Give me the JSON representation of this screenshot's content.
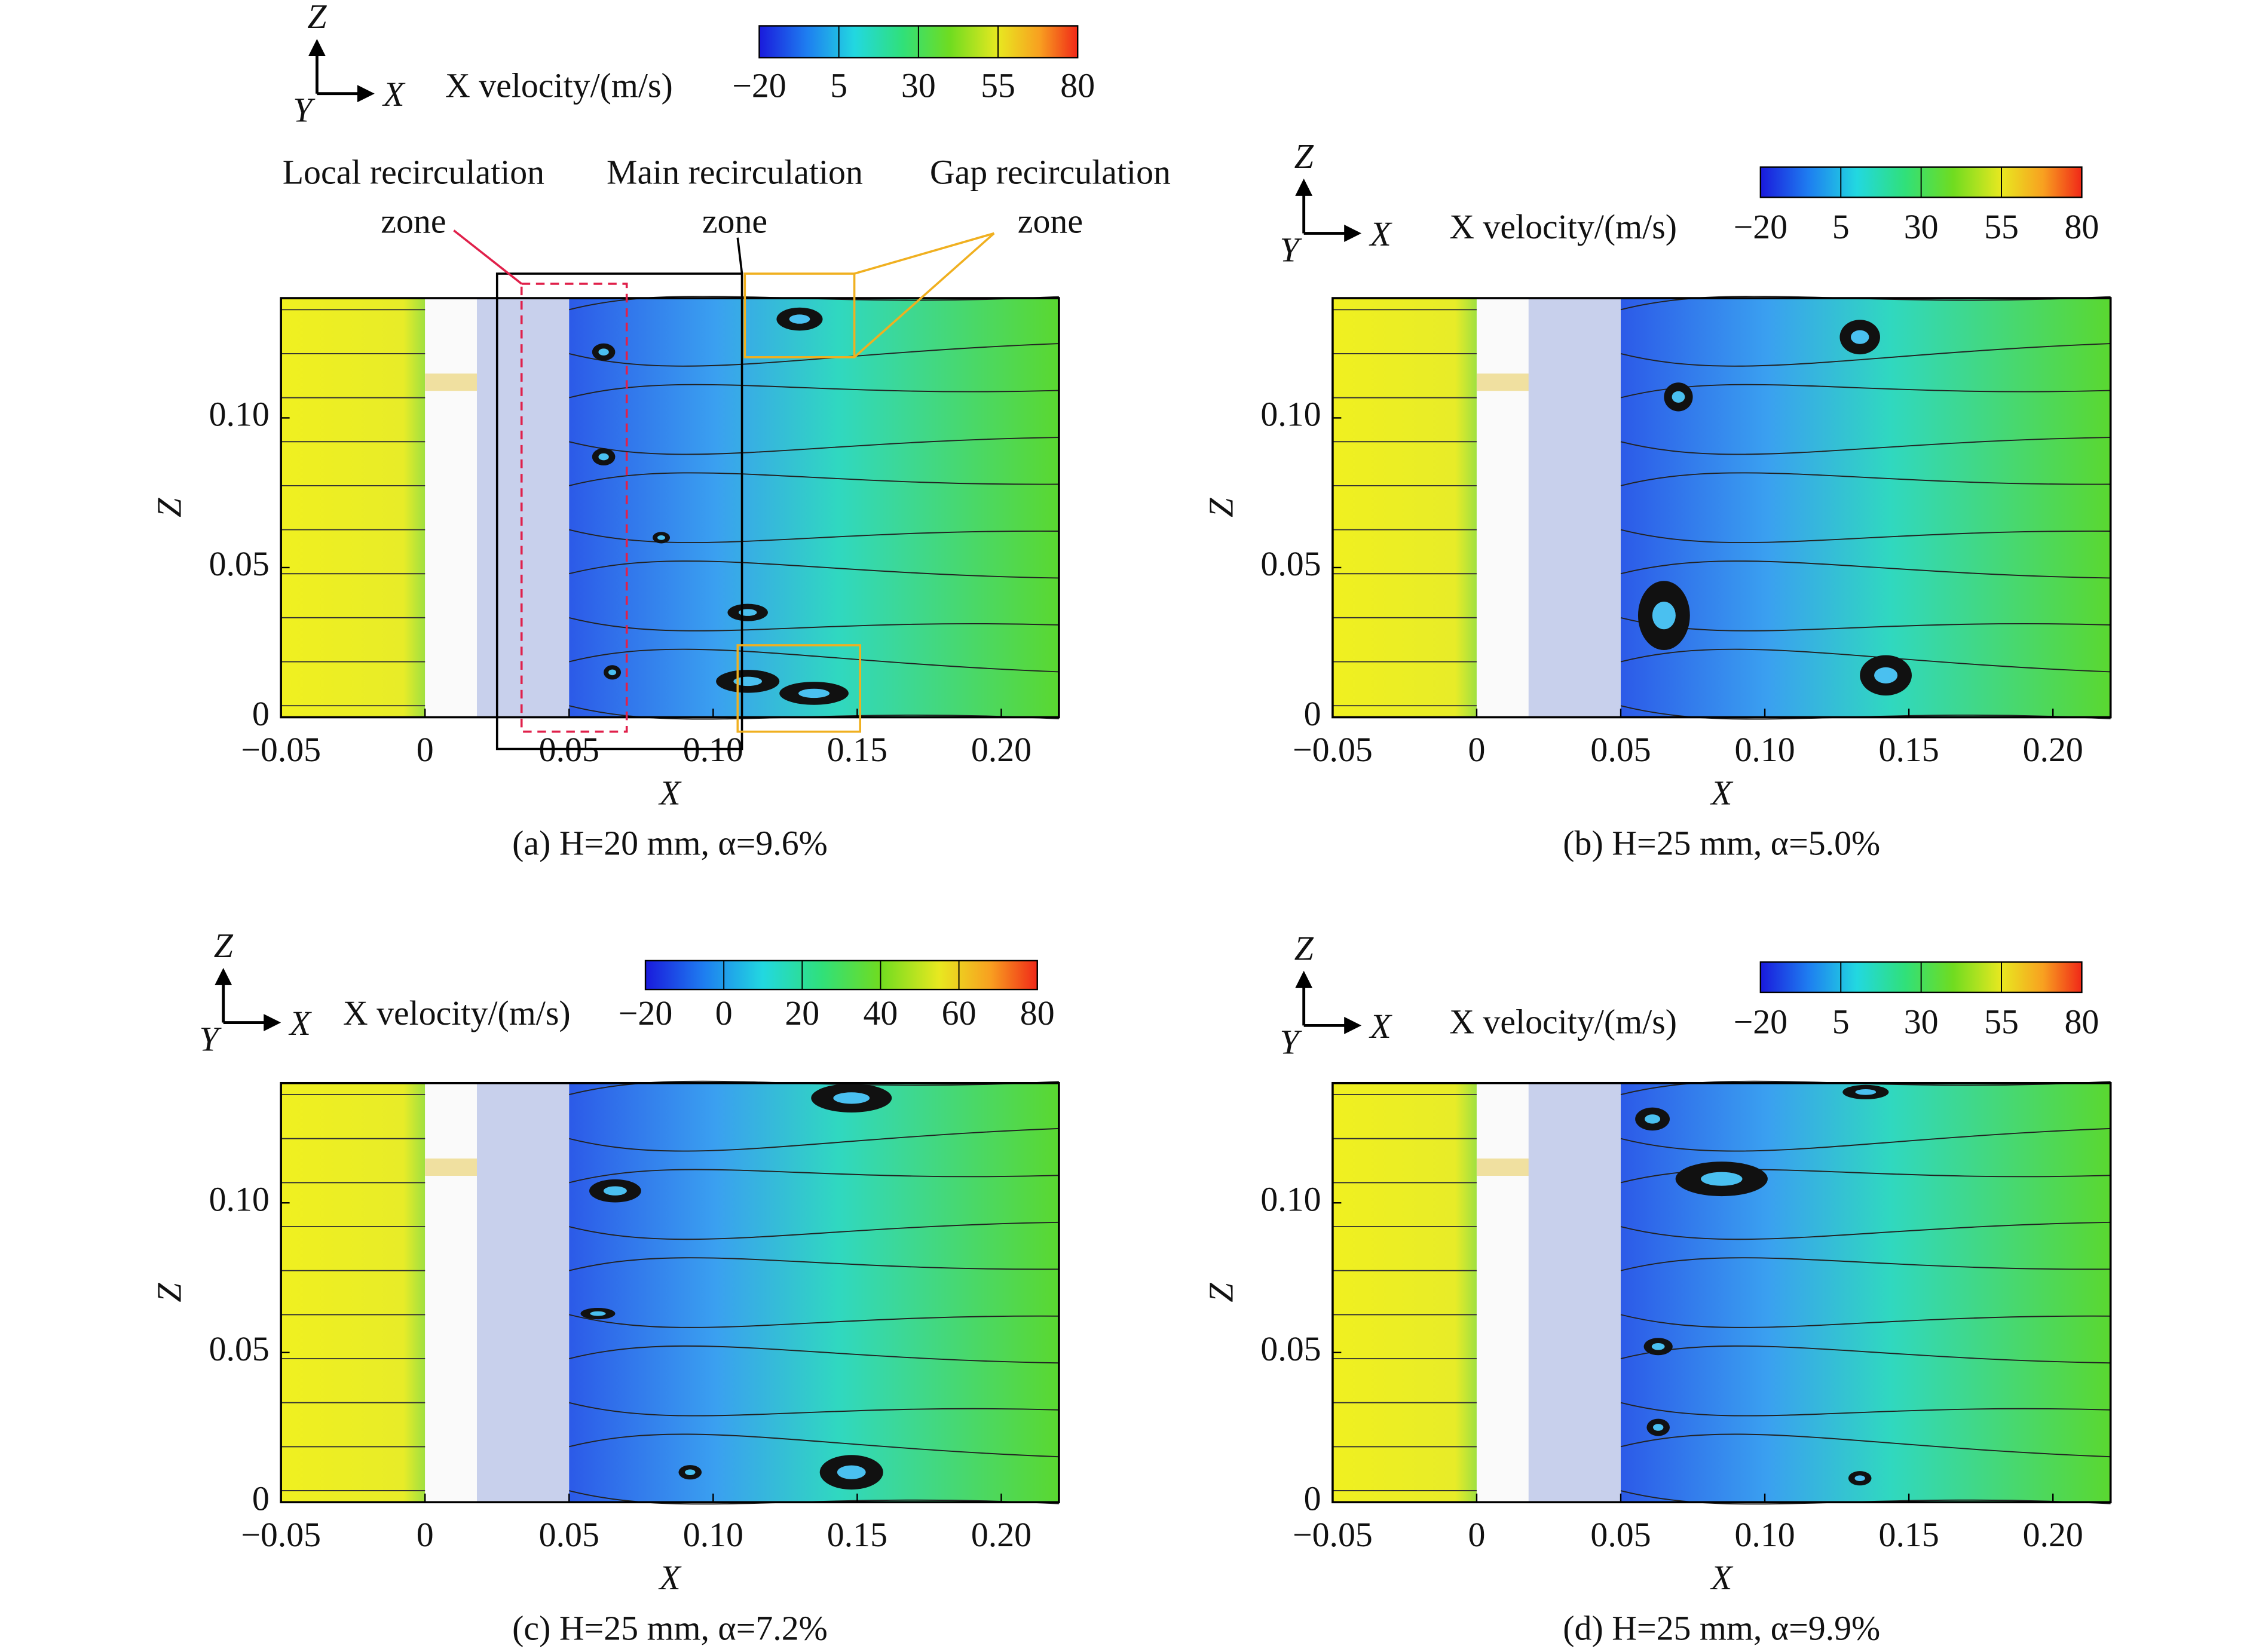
{
  "chart_data": [
    {
      "type": "contour",
      "caption": "(a) H=20 mm, α=9.6%",
      "xlabel": "X",
      "ylabel": "Z",
      "xlim": [
        -0.05,
        0.22
      ],
      "ylim": [
        0,
        0.14
      ],
      "xticks": [
        {
          "value": -0.05,
          "label": "−0.05"
        },
        0,
        0.05,
        {
          "value": 0.1,
          "label": "0.10"
        },
        0.15,
        {
          "value": 0.2,
          "label": "0.20"
        }
      ],
      "yticks": [
        0,
        0.05,
        {
          "value": 0.1,
          "label": "0.10"
        }
      ],
      "colorbar": {
        "label": "X velocity/(m/s)",
        "clim": [
          -20,
          80
        ],
        "ticks": [
          {
            "value": -20,
            "label": "−20"
          },
          5,
          30,
          55,
          80
        ]
      },
      "axes_triad": {
        "up": "Z",
        "right": "X",
        "depth": "Y"
      },
      "annotations": [
        {
          "lines": [
            "Local recirculation",
            "zone"
          ]
        },
        {
          "lines": [
            "Main recirculation",
            "zone"
          ]
        },
        {
          "lines": [
            "Gap recirculation",
            "zone"
          ]
        }
      ]
    },
    {
      "type": "contour",
      "caption": "(b) H=25 mm, α=5.0%",
      "xlabel": "X",
      "ylabel": "Z",
      "xlim": [
        -0.05,
        0.22
      ],
      "ylim": [
        0,
        0.14
      ],
      "xticks": [
        {
          "value": -0.05,
          "label": "−0.05"
        },
        0,
        0.05,
        {
          "value": 0.1,
          "label": "0.10"
        },
        0.15,
        {
          "value": 0.2,
          "label": "0.20"
        }
      ],
      "yticks": [
        0,
        0.05,
        {
          "value": 0.1,
          "label": "0.10"
        }
      ],
      "colorbar": {
        "label": "X velocity/(m/s)",
        "clim": [
          -20,
          80
        ],
        "ticks": [
          {
            "value": -20,
            "label": "−20"
          },
          5,
          30,
          55,
          80
        ]
      },
      "axes_triad": {
        "up": "Z",
        "right": "X",
        "depth": "Y"
      }
    },
    {
      "type": "contour",
      "caption": "(c) H=25 mm, α=7.2%",
      "xlabel": "X",
      "ylabel": "Z",
      "xlim": [
        -0.05,
        0.22
      ],
      "ylim": [
        0,
        0.14
      ],
      "xticks": [
        {
          "value": -0.05,
          "label": "−0.05"
        },
        0,
        0.05,
        {
          "value": 0.1,
          "label": "0.10"
        },
        0.15,
        {
          "value": 0.2,
          "label": "0.20"
        }
      ],
      "yticks": [
        0,
        0.05,
        {
          "value": 0.1,
          "label": "0.10"
        }
      ],
      "colorbar": {
        "label": "X velocity/(m/s)",
        "clim": [
          -20,
          80
        ],
        "ticks": [
          {
            "value": -20,
            "label": "−20"
          },
          0,
          20,
          40,
          60,
          80
        ]
      },
      "axes_triad": {
        "up": "Z",
        "right": "X",
        "depth": "Y"
      }
    },
    {
      "type": "contour",
      "caption": "(d) H=25 mm, α=9.9%",
      "xlabel": "X",
      "ylabel": "Z",
      "xlim": [
        -0.05,
        0.22
      ],
      "ylim": [
        0,
        0.14
      ],
      "xticks": [
        {
          "value": -0.05,
          "label": "−0.05"
        },
        0,
        0.05,
        {
          "value": 0.1,
          "label": "0.10"
        },
        0.15,
        {
          "value": 0.2,
          "label": "0.20"
        }
      ],
      "yticks": [
        0,
        0.05,
        {
          "value": 0.1,
          "label": "0.10"
        }
      ],
      "colorbar": {
        "label": "X velocity/(m/s)",
        "clim": [
          -20,
          80
        ],
        "ticks": [
          {
            "value": -20,
            "label": "−20"
          },
          5,
          30,
          55,
          80
        ]
      },
      "axes_triad": {
        "up": "Z",
        "right": "X",
        "depth": "Y"
      }
    }
  ]
}
